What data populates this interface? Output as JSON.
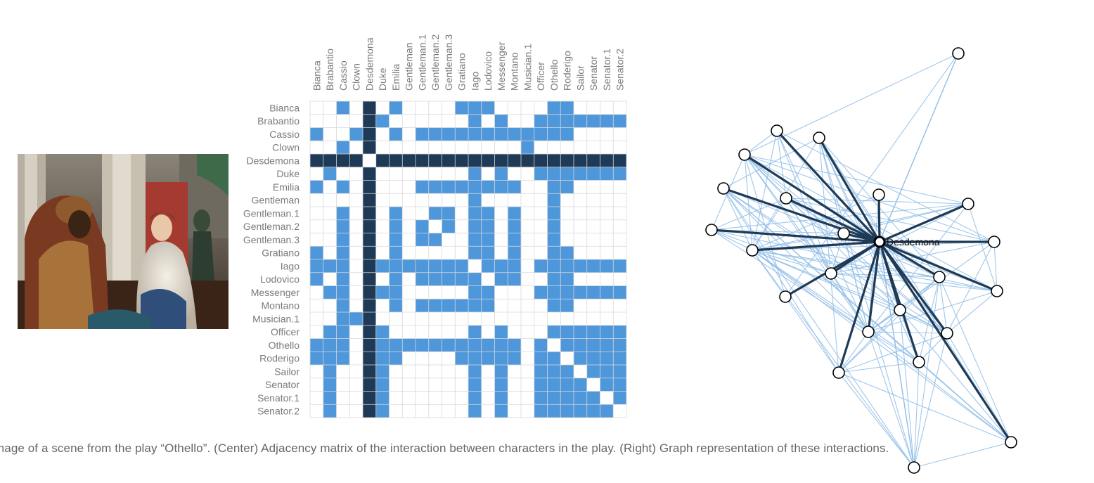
{
  "caption": "mage of a scene from the play “Othello”. (Center) Adjacency matrix of the interaction between characters in the play. (Right) Graph representation of these interactions.",
  "painting": {
    "description_icon": "painting-icon"
  },
  "colors": {
    "dark": "#1f3a56",
    "medium": "#4f97db",
    "light_edge": "#8fbde6",
    "grid": "#d8d8d8"
  },
  "matrix": {
    "characters": [
      "Bianca",
      "Brabantio",
      "Cassio",
      "Clown",
      "Desdemona",
      "Duke",
      "Emilia",
      "Gentleman",
      "Gentleman.1",
      "Gentleman.2",
      "Gentleman.3",
      "Gratiano",
      "Iago",
      "Lodovico",
      "Messenger",
      "Montano",
      "Musician.1",
      "Officer",
      "Othello",
      "Roderigo",
      "Sailor",
      "Senator",
      "Senator.1",
      "Senator.2"
    ],
    "highlight": "Desdemona",
    "edges": [
      [
        "Bianca",
        "Cassio"
      ],
      [
        "Bianca",
        "Emilia"
      ],
      [
        "Bianca",
        "Gratiano"
      ],
      [
        "Bianca",
        "Iago"
      ],
      [
        "Bianca",
        "Lodovico"
      ],
      [
        "Bianca",
        "Othello"
      ],
      [
        "Bianca",
        "Roderigo"
      ],
      [
        "Brabantio",
        "Duke"
      ],
      [
        "Brabantio",
        "Iago"
      ],
      [
        "Brabantio",
        "Messenger"
      ],
      [
        "Brabantio",
        "Officer"
      ],
      [
        "Brabantio",
        "Othello"
      ],
      [
        "Brabantio",
        "Roderigo"
      ],
      [
        "Brabantio",
        "Sailor"
      ],
      [
        "Brabantio",
        "Senator"
      ],
      [
        "Brabantio",
        "Senator.1"
      ],
      [
        "Brabantio",
        "Senator.2"
      ],
      [
        "Cassio",
        "Clown"
      ],
      [
        "Cassio",
        "Emilia"
      ],
      [
        "Cassio",
        "Gentleman.1"
      ],
      [
        "Cassio",
        "Gentleman.2"
      ],
      [
        "Cassio",
        "Gentleman.3"
      ],
      [
        "Cassio",
        "Gratiano"
      ],
      [
        "Cassio",
        "Iago"
      ],
      [
        "Cassio",
        "Lodovico"
      ],
      [
        "Cassio",
        "Messenger"
      ],
      [
        "Cassio",
        "Montano"
      ],
      [
        "Cassio",
        "Musician.1"
      ],
      [
        "Cassio",
        "Officer"
      ],
      [
        "Cassio",
        "Othello"
      ],
      [
        "Cassio",
        "Roderigo"
      ],
      [
        "Clown",
        "Musician.1"
      ],
      [
        "Duke",
        "Iago"
      ],
      [
        "Duke",
        "Messenger"
      ],
      [
        "Duke",
        "Officer"
      ],
      [
        "Duke",
        "Othello"
      ],
      [
        "Duke",
        "Roderigo"
      ],
      [
        "Duke",
        "Sailor"
      ],
      [
        "Duke",
        "Senator"
      ],
      [
        "Duke",
        "Senator.1"
      ],
      [
        "Duke",
        "Senator.2"
      ],
      [
        "Emilia",
        "Gentleman.1"
      ],
      [
        "Emilia",
        "Gentleman.2"
      ],
      [
        "Emilia",
        "Gentleman.3"
      ],
      [
        "Emilia",
        "Gratiano"
      ],
      [
        "Emilia",
        "Iago"
      ],
      [
        "Emilia",
        "Lodovico"
      ],
      [
        "Emilia",
        "Messenger"
      ],
      [
        "Emilia",
        "Montano"
      ],
      [
        "Emilia",
        "Othello"
      ],
      [
        "Emilia",
        "Roderigo"
      ],
      [
        "Gentleman",
        "Iago"
      ],
      [
        "Gentleman",
        "Othello"
      ],
      [
        "Gentleman.1",
        "Gentleman.2"
      ],
      [
        "Gentleman.1",
        "Gentleman.3"
      ],
      [
        "Gentleman.1",
        "Iago"
      ],
      [
        "Gentleman.1",
        "Lodovico"
      ],
      [
        "Gentleman.1",
        "Montano"
      ],
      [
        "Gentleman.1",
        "Othello"
      ],
      [
        "Gentleman.2",
        "Gentleman.3"
      ],
      [
        "Gentleman.2",
        "Iago"
      ],
      [
        "Gentleman.2",
        "Lodovico"
      ],
      [
        "Gentleman.2",
        "Montano"
      ],
      [
        "Gentleman.2",
        "Othello"
      ],
      [
        "Gentleman.3",
        "Iago"
      ],
      [
        "Gentleman.3",
        "Lodovico"
      ],
      [
        "Gentleman.3",
        "Montano"
      ],
      [
        "Gentleman.3",
        "Othello"
      ],
      [
        "Gratiano",
        "Iago"
      ],
      [
        "Gratiano",
        "Lodovico"
      ],
      [
        "Gratiano",
        "Montano"
      ],
      [
        "Gratiano",
        "Othello"
      ],
      [
        "Gratiano",
        "Roderigo"
      ],
      [
        "Iago",
        "Lodovico"
      ],
      [
        "Iago",
        "Messenger"
      ],
      [
        "Iago",
        "Montano"
      ],
      [
        "Iago",
        "Officer"
      ],
      [
        "Iago",
        "Othello"
      ],
      [
        "Iago",
        "Roderigo"
      ],
      [
        "Iago",
        "Sailor"
      ],
      [
        "Iago",
        "Senator"
      ],
      [
        "Iago",
        "Senator.1"
      ],
      [
        "Iago",
        "Senator.2"
      ],
      [
        "Lodovico",
        "Messenger"
      ],
      [
        "Lodovico",
        "Montano"
      ],
      [
        "Lodovico",
        "Othello"
      ],
      [
        "Lodovico",
        "Roderigo"
      ],
      [
        "Messenger",
        "Officer"
      ],
      [
        "Messenger",
        "Othello"
      ],
      [
        "Messenger",
        "Roderigo"
      ],
      [
        "Messenger",
        "Sailor"
      ],
      [
        "Messenger",
        "Senator"
      ],
      [
        "Messenger",
        "Senator.1"
      ],
      [
        "Messenger",
        "Senator.2"
      ],
      [
        "Montano",
        "Othello"
      ],
      [
        "Montano",
        "Roderigo"
      ],
      [
        "Officer",
        "Othello"
      ],
      [
        "Officer",
        "Roderigo"
      ],
      [
        "Officer",
        "Sailor"
      ],
      [
        "Officer",
        "Senator"
      ],
      [
        "Officer",
        "Senator.1"
      ],
      [
        "Officer",
        "Senator.2"
      ],
      [
        "Othello",
        "Roderigo"
      ],
      [
        "Othello",
        "Sailor"
      ],
      [
        "Othello",
        "Senator"
      ],
      [
        "Othello",
        "Senator.1"
      ],
      [
        "Othello",
        "Senator.2"
      ],
      [
        "Roderigo",
        "Sailor"
      ],
      [
        "Roderigo",
        "Senator"
      ],
      [
        "Roderigo",
        "Senator.1"
      ],
      [
        "Roderigo",
        "Senator.2"
      ],
      [
        "Sailor",
        "Senator"
      ],
      [
        "Sailor",
        "Senator.1"
      ],
      [
        "Sailor",
        "Senator.2"
      ],
      [
        "Senator",
        "Senator.1"
      ],
      [
        "Senator",
        "Senator.2"
      ],
      [
        "Senator.1",
        "Senator.2"
      ]
    ]
  },
  "graph": {
    "label": "Desdemona"
  }
}
